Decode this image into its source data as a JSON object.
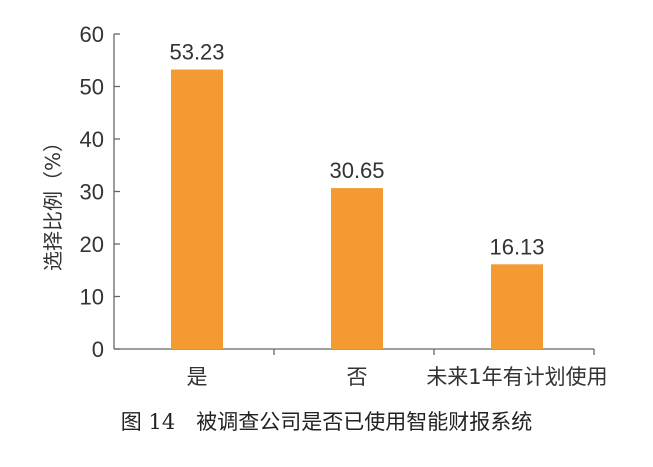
{
  "chart_data": {
    "type": "bar",
    "title": "",
    "ylabel": "选择比例（%）",
    "xlabel": "",
    "ylim": [
      0,
      60
    ],
    "yticks": [
      0,
      10,
      20,
      30,
      40,
      50,
      60
    ],
    "categories": [
      "是",
      "否",
      "未来1年有计划使用"
    ],
    "values": [
      53.23,
      30.65,
      16.13
    ],
    "value_labels": [
      "53.23",
      "30.65",
      "16.13"
    ],
    "bar_color": "#f39a33",
    "grid": false,
    "legend": "none"
  },
  "caption": "图 14　被调查公司是否已使用智能财报系统"
}
